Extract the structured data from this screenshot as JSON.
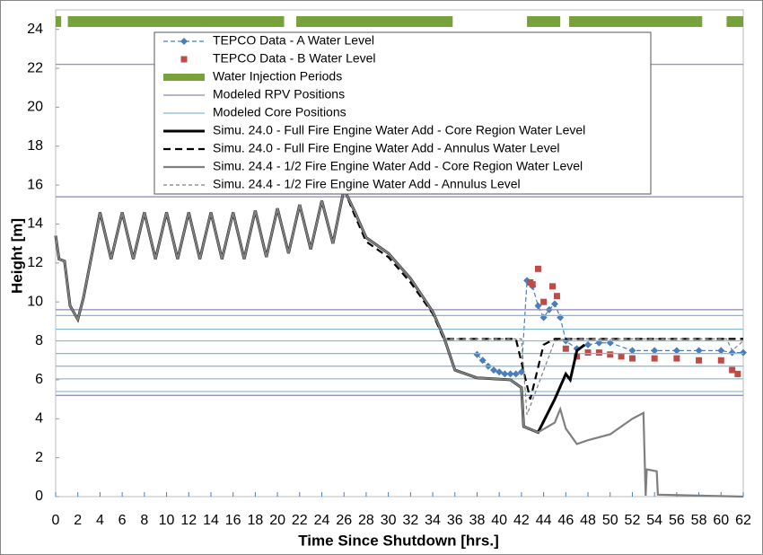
{
  "chart_data": {
    "type": "line",
    "xlabel": "Time Since Shutdown [hrs.]",
    "ylabel": "Height [m]",
    "xlim": [
      0,
      62
    ],
    "xticks": [
      0,
      2,
      4,
      6,
      8,
      10,
      12,
      14,
      16,
      18,
      20,
      22,
      24,
      26,
      28,
      30,
      32,
      34,
      36,
      38,
      40,
      42,
      44,
      46,
      48,
      50,
      52,
      54,
      56,
      58,
      60,
      62
    ],
    "ylim": [
      0,
      25
    ],
    "yticks": [
      0,
      2,
      4,
      6,
      8,
      10,
      12,
      14,
      16,
      18,
      20,
      22,
      24
    ],
    "series": [
      {
        "name": "TEPCO Data - A Water Level",
        "color": "#4a7ebb",
        "dash": "5,3",
        "width": 1.2,
        "marker": "diamond",
        "x": [
          38,
          38.5,
          39,
          39.5,
          40,
          40.5,
          41,
          41.5,
          42,
          42.5,
          43,
          43.5,
          44,
          44.5,
          45,
          45.5,
          46,
          47,
          48,
          49,
          50,
          52,
          54,
          56,
          58,
          60,
          61,
          62
        ],
        "values": [
          7.3,
          7.0,
          6.7,
          6.5,
          6.4,
          6.3,
          6.3,
          6.3,
          6.4,
          11.1,
          10.8,
          9.8,
          9.2,
          9.6,
          9.9,
          9.2,
          8.0,
          7.6,
          7.8,
          7.9,
          7.9,
          7.5,
          7.5,
          7.5,
          7.5,
          7.5,
          7.4,
          7.4
        ]
      },
      {
        "name": "TEPCO Data - B Water Level",
        "color": "#be4b48",
        "marker": "square",
        "x": [
          42.8,
          43,
          43.5,
          44,
          44.8,
          45.2,
          46,
          47,
          48,
          49,
          50,
          51,
          52,
          54,
          56,
          58,
          60,
          61,
          61.5
        ],
        "values": [
          11.0,
          10.9,
          11.7,
          10.0,
          10.8,
          10.3,
          7.6,
          7.2,
          7.4,
          7.4,
          7.3,
          7.2,
          7.1,
          7.1,
          7.1,
          7.0,
          7.0,
          6.5,
          6.3
        ]
      },
      {
        "name": "Water Injection Periods",
        "color": "#77a13b",
        "kind": "span",
        "level": 24.4,
        "x_ranges": [
          [
            0,
            0.5
          ],
          [
            1.1,
            20.6
          ],
          [
            21.7,
            35.8
          ],
          [
            42.5,
            45.5
          ],
          [
            46.3,
            58.3
          ],
          [
            60.5,
            62
          ]
        ]
      },
      {
        "name": "Modeled RPV Positions",
        "color": "#8c84b3",
        "kind": "hline",
        "values": [
          5.2,
          9.6,
          15.4,
          22.2
        ]
      },
      {
        "name": "Modeled Core Positions",
        "color": "#7fb8d8",
        "kind": "hline",
        "values": [
          5.4,
          6.05,
          6.7,
          7.35,
          8.0,
          8.6,
          9.3
        ]
      },
      {
        "name": "Simu. 24.0 - Full Fire Engine Water Add - Core Region Water Level",
        "color": "#000000",
        "width": 3,
        "x": [
          0,
          0.3,
          0.8,
          1.3,
          2,
          2.5,
          4,
          5,
          6,
          7,
          8,
          9,
          10,
          11,
          12,
          13,
          14,
          15,
          16,
          17,
          18,
          19,
          20,
          21,
          22,
          23,
          24,
          25,
          26,
          27,
          28,
          30,
          32,
          34,
          35,
          36,
          38,
          41,
          42,
          42.2,
          43.5,
          45,
          46,
          46.4,
          47,
          47.7
        ],
        "values": [
          13.4,
          12.2,
          12.1,
          9.8,
          9.1,
          10.2,
          14.6,
          12.2,
          14.6,
          12.2,
          14.6,
          12.2,
          14.6,
          12.2,
          14.6,
          12.2,
          14.6,
          12.2,
          14.6,
          12.2,
          14.7,
          12.3,
          14.8,
          12.5,
          15.0,
          12.7,
          15.2,
          13.0,
          15.8,
          14.6,
          13.3,
          12.5,
          11.2,
          9.5,
          8.2,
          6.5,
          6.1,
          6.0,
          5.6,
          3.6,
          3.3,
          5.0,
          6.3,
          6.0,
          7.5,
          7.8
        ]
      },
      {
        "name": "Simu. 24.0 - Full Fire Engine Water Add - Annulus Water Level",
        "color": "#000000",
        "width": 2.2,
        "dash": "8,5",
        "x": [
          26,
          27,
          28,
          30,
          32,
          34,
          35,
          41.5,
          42.8,
          44,
          45,
          48,
          62
        ],
        "values": [
          15.8,
          14.4,
          13.1,
          12.3,
          11.0,
          9.4,
          8.1,
          8.1,
          5.0,
          7.8,
          8.1,
          8.1,
          8.1
        ]
      },
      {
        "name": "Simu. 24.4 - 1/2 Fire Engine Water Add - Core Region Water Level",
        "color": "#7f7f7f",
        "width": 2.2,
        "x": [
          0,
          0.3,
          0.8,
          1.3,
          2,
          2.5,
          4,
          5,
          6,
          7,
          8,
          9,
          10,
          11,
          12,
          13,
          14,
          15,
          16,
          17,
          18,
          19,
          20,
          21,
          22,
          23,
          24,
          25,
          26,
          27,
          28,
          30,
          32,
          34,
          35,
          36,
          38,
          41,
          42,
          42.2,
          43.5,
          45,
          45.5,
          46,
          47,
          48,
          50,
          52,
          53,
          53.2,
          53.3,
          54.2,
          54.3,
          62
        ],
        "values": [
          13.4,
          12.2,
          12.1,
          9.8,
          9.1,
          10.2,
          14.6,
          12.2,
          14.6,
          12.2,
          14.6,
          12.2,
          14.6,
          12.2,
          14.6,
          12.2,
          14.6,
          12.2,
          14.6,
          12.2,
          14.7,
          12.3,
          14.8,
          12.5,
          15.0,
          12.7,
          15.2,
          13.0,
          15.8,
          14.6,
          13.3,
          12.5,
          11.2,
          9.5,
          8.2,
          6.5,
          6.1,
          6.0,
          5.6,
          3.6,
          3.3,
          3.8,
          4.5,
          3.5,
          2.7,
          2.9,
          3.2,
          4.0,
          4.3,
          0.05,
          1.4,
          1.3,
          0.1,
          0.0
        ]
      },
      {
        "name": "Simu. 24.4 - 1/2 Fire Engine Water Add - Annulus Level",
        "color": "#7f7f7f",
        "width": 1.2,
        "dash": "4,3",
        "x": [
          35,
          42,
          42.5,
          45,
          46,
          60.5,
          61,
          62
        ],
        "values": [
          8.1,
          8.1,
          4.2,
          8.0,
          8.1,
          8.1,
          7.5,
          8.0
        ]
      }
    ]
  }
}
